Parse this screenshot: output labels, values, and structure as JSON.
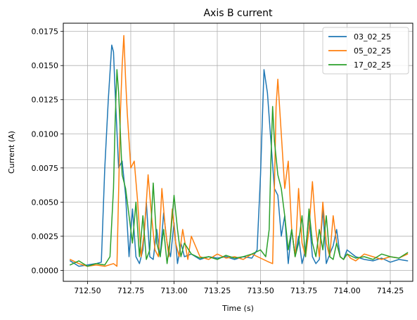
{
  "chart_data": {
    "type": "line",
    "title": "Axis B current",
    "xlabel": "Time (s)",
    "ylabel": "Current (A)",
    "xlim": [
      712.36,
      714.38
    ],
    "ylim": [
      -0.0008,
      0.0181
    ],
    "xticks": [
      712.5,
      712.75,
      713.0,
      713.25,
      713.5,
      713.75,
      714.0,
      714.25
    ],
    "xtick_labels": [
      "712.50",
      "712.75",
      "713.00",
      "713.25",
      "713.50",
      "713.75",
      "714.00",
      "714.25"
    ],
    "yticks": [
      0.0,
      0.0025,
      0.005,
      0.0075,
      0.01,
      0.0125,
      0.015,
      0.0175
    ],
    "ytick_labels": [
      "0.0000",
      "0.0025",
      "0.0050",
      "0.0075",
      "0.0100",
      "0.0125",
      "0.0150",
      "0.0175"
    ],
    "grid": true,
    "legend_position": "top-right",
    "series": [
      {
        "name": "03_02_25",
        "color": "#1f77b4",
        "x": [
          712.4,
          712.45,
          712.5,
          712.55,
          712.58,
          712.6,
          712.62,
          712.64,
          712.65,
          712.66,
          712.68,
          712.7,
          712.72,
          712.74,
          712.76,
          712.78,
          712.8,
          712.82,
          712.84,
          712.86,
          712.88,
          712.9,
          712.92,
          712.94,
          712.96,
          712.98,
          713.0,
          713.02,
          713.04,
          713.06,
          713.1,
          713.15,
          713.2,
          713.25,
          713.3,
          713.35,
          713.4,
          713.45,
          713.48,
          713.5,
          713.52,
          713.54,
          713.56,
          713.58,
          713.6,
          713.62,
          713.64,
          713.66,
          713.68,
          713.7,
          713.72,
          713.74,
          713.76,
          713.78,
          713.8,
          713.82,
          713.84,
          713.86,
          713.88,
          713.9,
          713.92,
          713.94,
          713.96,
          713.98,
          714.0,
          714.05,
          714.1,
          714.15,
          714.2,
          714.25,
          714.3,
          714.35
        ],
        "values": [
          0.0007,
          0.0003,
          0.0004,
          0.0005,
          0.0006,
          0.0075,
          0.0125,
          0.0165,
          0.016,
          0.013,
          0.0075,
          0.008,
          0.0055,
          0.001,
          0.0045,
          0.001,
          0.0005,
          0.0015,
          0.005,
          0.001,
          0.0008,
          0.003,
          0.001,
          0.0042,
          0.002,
          0.001,
          0.0035,
          0.0005,
          0.002,
          0.001,
          0.0012,
          0.0008,
          0.001,
          0.0009,
          0.001,
          0.0008,
          0.001,
          0.0009,
          0.0015,
          0.007,
          0.0147,
          0.013,
          0.0095,
          0.006,
          0.0055,
          0.0025,
          0.004,
          0.0005,
          0.003,
          0.001,
          0.0025,
          0.0005,
          0.0015,
          0.004,
          0.001,
          0.0005,
          0.0008,
          0.0045,
          0.0005,
          0.0012,
          0.0018,
          0.003,
          0.001,
          0.0008,
          0.0015,
          0.001,
          0.0008,
          0.0007,
          0.0009,
          0.0006,
          0.0008,
          0.0007
        ]
      },
      {
        "name": "05_02_25",
        "color": "#ff7f0e",
        "x": [
          712.4,
          712.45,
          712.5,
          712.55,
          712.6,
          712.65,
          712.67,
          712.69,
          712.7,
          712.71,
          712.72,
          712.73,
          712.75,
          712.77,
          712.79,
          712.81,
          712.83,
          712.85,
          712.87,
          712.89,
          712.91,
          712.93,
          712.95,
          712.97,
          712.99,
          713.01,
          713.03,
          713.05,
          713.08,
          713.1,
          713.15,
          713.2,
          713.25,
          713.3,
          713.35,
          713.4,
          713.45,
          713.5,
          713.55,
          713.57,
          713.58,
          713.59,
          713.6,
          713.62,
          713.64,
          713.66,
          713.68,
          713.7,
          713.72,
          713.74,
          713.76,
          713.78,
          713.8,
          713.82,
          713.84,
          713.86,
          713.88,
          713.9,
          713.92,
          713.94,
          713.96,
          713.98,
          714.0,
          714.02,
          714.05,
          714.1,
          714.15,
          714.2,
          714.25,
          714.3,
          714.35
        ],
        "values": [
          0.0008,
          0.0005,
          0.0003,
          0.0004,
          0.0003,
          0.0005,
          0.0003,
          0.0115,
          0.015,
          0.0172,
          0.014,
          0.0115,
          0.0075,
          0.008,
          0.005,
          0.001,
          0.003,
          0.007,
          0.004,
          0.0015,
          0.001,
          0.006,
          0.003,
          0.001,
          0.0045,
          0.002,
          0.001,
          0.003,
          0.0008,
          0.0025,
          0.001,
          0.0008,
          0.0012,
          0.0009,
          0.001,
          0.0008,
          0.0012,
          0.0009,
          0.0006,
          0.0005,
          0.006,
          0.012,
          0.014,
          0.01,
          0.006,
          0.008,
          0.003,
          0.001,
          0.006,
          0.002,
          0.001,
          0.003,
          0.0065,
          0.003,
          0.001,
          0.005,
          0.002,
          0.001,
          0.004,
          0.002,
          0.001,
          0.0008,
          0.0012,
          0.0009,
          0.0007,
          0.0012,
          0.001,
          0.0008,
          0.001,
          0.0009,
          0.0012
        ]
      },
      {
        "name": "17_02_25",
        "color": "#2ca02c",
        "x": [
          712.4,
          712.45,
          712.5,
          712.55,
          712.6,
          712.63,
          712.65,
          712.66,
          712.67,
          712.68,
          712.69,
          712.7,
          712.72,
          712.74,
          712.76,
          712.78,
          712.8,
          712.82,
          712.84,
          712.86,
          712.88,
          712.9,
          712.92,
          712.94,
          712.96,
          712.98,
          713.0,
          713.02,
          713.04,
          713.06,
          713.1,
          713.15,
          713.2,
          713.25,
          713.3,
          713.35,
          713.4,
          713.45,
          713.5,
          713.53,
          713.55,
          713.56,
          713.57,
          713.58,
          713.6,
          713.62,
          713.64,
          713.66,
          713.68,
          713.7,
          713.72,
          713.74,
          713.76,
          713.78,
          713.8,
          713.82,
          713.84,
          713.86,
          713.88,
          713.9,
          713.92,
          713.94,
          713.96,
          713.98,
          714.0,
          714.05,
          714.1,
          714.15,
          714.2,
          714.25,
          714.3,
          714.35
        ],
        "values": [
          0.0004,
          0.0007,
          0.0003,
          0.0005,
          0.0004,
          0.001,
          0.006,
          0.011,
          0.0147,
          0.013,
          0.01,
          0.007,
          0.006,
          0.004,
          0.002,
          0.005,
          0.001,
          0.004,
          0.0008,
          0.0015,
          0.0064,
          0.002,
          0.001,
          0.003,
          0.0005,
          0.0025,
          0.0055,
          0.003,
          0.001,
          0.002,
          0.0012,
          0.0009,
          0.001,
          0.0008,
          0.0011,
          0.0009,
          0.001,
          0.0012,
          0.0015,
          0.001,
          0.003,
          0.008,
          0.012,
          0.0095,
          0.007,
          0.006,
          0.004,
          0.0015,
          0.003,
          0.001,
          0.002,
          0.004,
          0.001,
          0.0045,
          0.002,
          0.001,
          0.003,
          0.0015,
          0.004,
          0.001,
          0.0008,
          0.002,
          0.001,
          0.0008,
          0.0012,
          0.0009,
          0.001,
          0.0008,
          0.0012,
          0.001,
          0.0009,
          0.0013
        ]
      }
    ]
  }
}
